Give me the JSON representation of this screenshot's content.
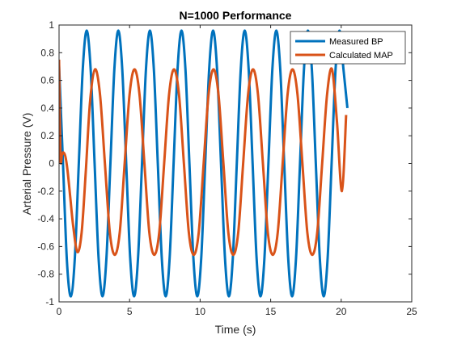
{
  "chart_data": {
    "type": "line",
    "title": "N=1000 Performance",
    "xlabel": "Time (s)",
    "ylabel": "Arterial Pressure (V)",
    "xlim": [
      0,
      25
    ],
    "ylim": [
      -1,
      1
    ],
    "xticks": [
      0,
      5,
      10,
      15,
      20,
      25
    ],
    "yticks": [
      -1,
      -0.8,
      -0.6,
      -0.4,
      -0.2,
      0,
      0.2,
      0.4,
      0.6,
      0.8,
      1
    ],
    "xtick_labels": [
      "0",
      "5",
      "10",
      "15",
      "20",
      "25"
    ],
    "ytick_labels": [
      "-1",
      "-0.8",
      "-0.6",
      "-0.4",
      "-0.2",
      "0",
      "0.2",
      "0.4",
      "0.6",
      "0.8",
      "1"
    ],
    "grid": false,
    "legend_position": "top-right",
    "series": [
      {
        "name": "Measured BP",
        "color": "#0072BD",
        "x": [
          0,
          0.28,
          0.56,
          0.84,
          1.12,
          1.4,
          1.68,
          1.96,
          2.24,
          2.52,
          2.8,
          3.08,
          3.36,
          3.64,
          3.92,
          4.2,
          4.48,
          4.76,
          5.04,
          5.32,
          5.6,
          5.88,
          6.16,
          6.44,
          6.72,
          7,
          7.28,
          7.56,
          7.84,
          8.12,
          8.4,
          8.68,
          8.96,
          9.24,
          9.52,
          9.8,
          10.08,
          10.36,
          10.64,
          10.92,
          11.2,
          11.48,
          11.76,
          12.04,
          12.32,
          12.6,
          12.88,
          13.16,
          13.44,
          13.72,
          14,
          14.28,
          14.56,
          14.84,
          15.12,
          15.4,
          15.68,
          15.96,
          16.24,
          16.52,
          16.8,
          17.08,
          17.36,
          17.64,
          17.92,
          18.2,
          18.48,
          18.76,
          19.04,
          19.32,
          19.6,
          19.88,
          20.16,
          20.44
        ],
        "y": [
          0.71,
          0,
          -0.71,
          -0.96,
          -0.68,
          0,
          0.68,
          0.96,
          0.68,
          0,
          -0.68,
          -0.96,
          -0.68,
          0,
          0.68,
          0.96,
          0.68,
          0,
          -0.68,
          -0.96,
          -0.68,
          0,
          0.68,
          0.96,
          0.68,
          0,
          -0.68,
          -0.96,
          -0.68,
          0,
          0.68,
          0.96,
          0.68,
          0,
          -0.68,
          -0.96,
          -0.68,
          0,
          0.68,
          0.96,
          0.68,
          0,
          -0.68,
          -0.96,
          -0.68,
          0,
          0.68,
          0.96,
          0.68,
          0,
          -0.68,
          -0.96,
          -0.68,
          0,
          0.68,
          0.96,
          0.68,
          0,
          -0.68,
          -0.96,
          -0.68,
          0,
          0.68,
          0.96,
          0.68,
          0,
          -0.68,
          -0.96,
          -0.68,
          0,
          0.68,
          0.96,
          0.68,
          0.4
        ]
      },
      {
        "name": "Calculated MAP",
        "color": "#D95319",
        "x": [
          0,
          0.1,
          0.2,
          0.3,
          0.45,
          0.6,
          0.8,
          1.0,
          1.3,
          1.6,
          1.9,
          2.2,
          2.55,
          2.9,
          3.25,
          3.6,
          3.95,
          4.3,
          4.65,
          5.0,
          5.35,
          5.7,
          6.05,
          6.4,
          6.75,
          7.1,
          7.45,
          7.8,
          8.15,
          8.5,
          8.85,
          9.2,
          9.55,
          9.9,
          10.25,
          10.6,
          10.95,
          11.3,
          11.65,
          12.0,
          12.35,
          12.7,
          13.05,
          13.4,
          13.75,
          14.1,
          14.45,
          14.8,
          15.15,
          15.5,
          15.85,
          16.2,
          16.55,
          16.9,
          17.25,
          17.6,
          17.95,
          18.3,
          18.65,
          19.0,
          19.35,
          19.7,
          20.05,
          20.35
        ],
        "y": [
          0.75,
          0.05,
          0.06,
          0.08,
          0.05,
          -0.05,
          -0.25,
          -0.45,
          -0.64,
          -0.5,
          -0.05,
          0.45,
          0.68,
          0.5,
          0,
          -0.5,
          -0.66,
          -0.5,
          0,
          0.5,
          0.68,
          0.5,
          0,
          -0.5,
          -0.66,
          -0.5,
          0,
          0.5,
          0.68,
          0.5,
          0,
          -0.5,
          -0.66,
          -0.5,
          0,
          0.5,
          0.68,
          0.5,
          0,
          -0.5,
          -0.66,
          -0.5,
          0,
          0.5,
          0.68,
          0.5,
          0,
          -0.5,
          -0.66,
          -0.5,
          0,
          0.5,
          0.68,
          0.5,
          0,
          -0.5,
          -0.66,
          -0.5,
          0,
          0.5,
          0.68,
          0.3,
          -0.2,
          0.35
        ]
      }
    ]
  }
}
